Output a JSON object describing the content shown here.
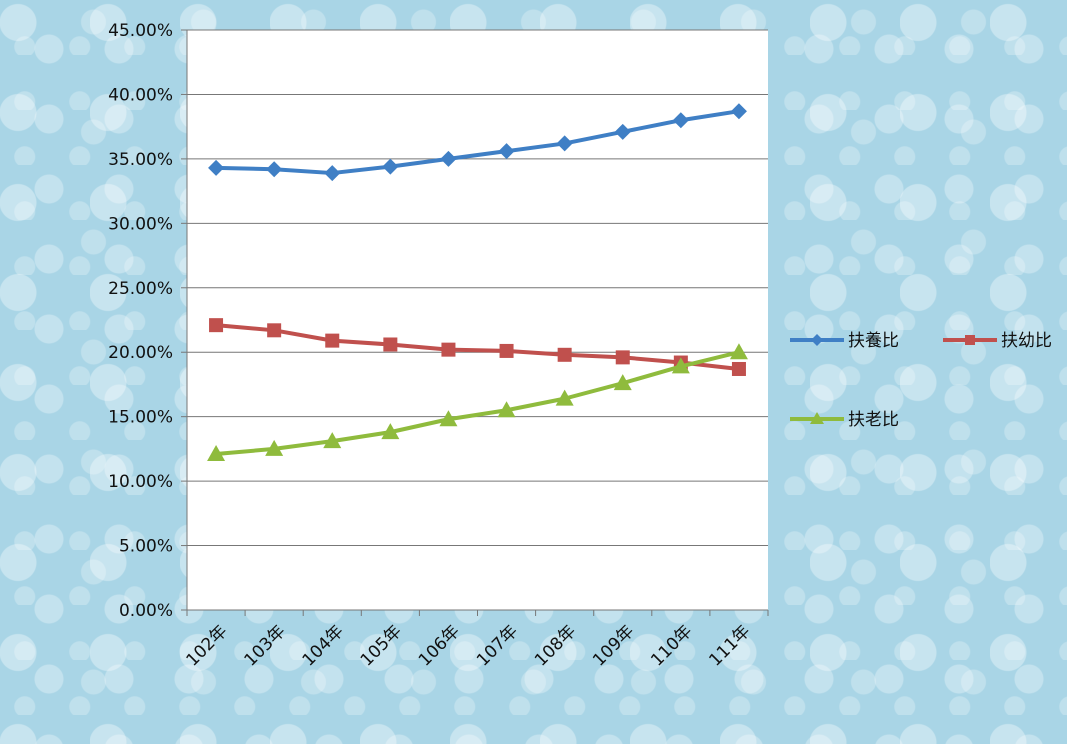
{
  "chart_data": {
    "type": "line",
    "title": "",
    "xlabel": "",
    "ylabel": "",
    "categories": [
      "102年",
      "103年",
      "104年",
      "105年",
      "106年",
      "107年",
      "108年",
      "109年",
      "110年",
      "111年"
    ],
    "ylim": [
      0,
      45
    ],
    "yticks": [
      "0.00%",
      "5.00%",
      "10.00%",
      "15.00%",
      "20.00%",
      "25.00%",
      "30.00%",
      "35.00%",
      "40.00%",
      "45.00%"
    ],
    "grid": true,
    "legend_position": "right",
    "series": [
      {
        "name": "扶養比",
        "color": "#3f7fc5",
        "marker": "diamond",
        "values": [
          34.3,
          34.2,
          33.9,
          34.4,
          35.0,
          35.6,
          36.2,
          37.1,
          38.0,
          38.7
        ]
      },
      {
        "name": "扶幼比",
        "color": "#c0504d",
        "marker": "square",
        "values": [
          22.1,
          21.7,
          20.9,
          20.6,
          20.2,
          20.1,
          19.8,
          19.6,
          19.2,
          18.7
        ]
      },
      {
        "name": "扶老比",
        "color": "#8fbb3d",
        "marker": "triangle",
        "values": [
          12.1,
          12.5,
          13.1,
          13.8,
          14.8,
          15.5,
          16.4,
          17.6,
          18.9,
          20.0
        ]
      }
    ]
  }
}
